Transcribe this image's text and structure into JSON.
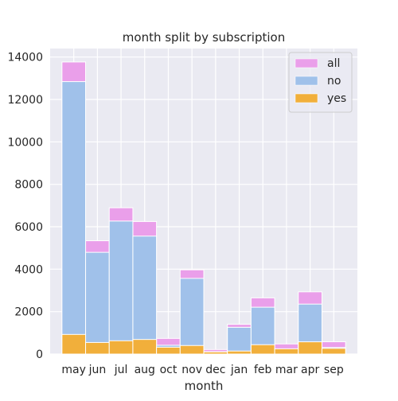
{
  "chart_data": {
    "type": "bar",
    "stacked": true,
    "title": "month split by subscription",
    "xlabel": "month",
    "ylabel": "",
    "ylim": [
      0,
      14400
    ],
    "yticks": [
      0,
      2000,
      4000,
      6000,
      8000,
      10000,
      12000,
      14000
    ],
    "grid": true,
    "legend_position": "top-right",
    "categories": [
      "may",
      "jun",
      "jul",
      "aug",
      "oct",
      "nov",
      "dec",
      "jan",
      "feb",
      "mar",
      "apr",
      "sep"
    ],
    "series": [
      {
        "name": "all",
        "color": "#ea9fea",
        "values": [
          13766,
          5341,
          6895,
          6247,
          738,
          3970,
          214,
          1403,
          2649,
          477,
          2932,
          579
        ]
      },
      {
        "name": "no",
        "color": "#a0c1ea",
        "values": [
          12841,
          4795,
          6268,
          5559,
          415,
          3567,
          114,
          1261,
          2208,
          229,
          2355,
          310
        ]
      },
      {
        "name": "yes",
        "color": "#f1af3b",
        "values": [
          925,
          546,
          627,
          688,
          323,
          403,
          100,
          142,
          441,
          248,
          577,
          269
        ]
      }
    ]
  }
}
